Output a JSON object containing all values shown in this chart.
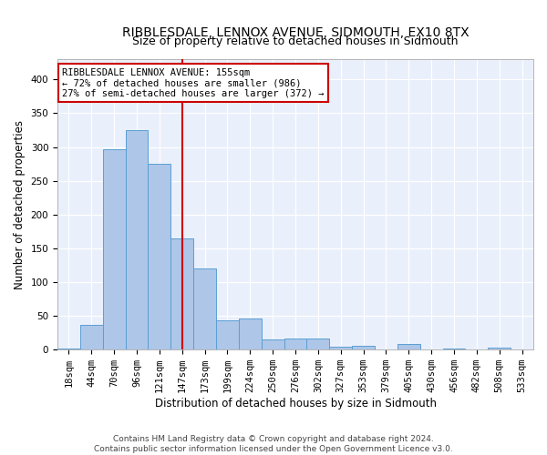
{
  "title": "RIBBLESDALE, LENNOX AVENUE, SIDMOUTH, EX10 8TX",
  "subtitle": "Size of property relative to detached houses in Sidmouth",
  "xlabel": "Distribution of detached houses by size in Sidmouth",
  "ylabel": "Number of detached properties",
  "footer_line1": "Contains HM Land Registry data © Crown copyright and database right 2024.",
  "footer_line2": "Contains public sector information licensed under the Open Government Licence v3.0.",
  "bin_labels": [
    "18sqm",
    "44sqm",
    "70sqm",
    "96sqm",
    "121sqm",
    "147sqm",
    "173sqm",
    "199sqm",
    "224sqm",
    "250sqm",
    "276sqm",
    "302sqm",
    "327sqm",
    "353sqm",
    "379sqm",
    "405sqm",
    "430sqm",
    "456sqm",
    "482sqm",
    "508sqm",
    "533sqm"
  ],
  "bar_values": [
    2,
    36,
    296,
    325,
    275,
    165,
    120,
    44,
    46,
    15,
    16,
    17,
    5,
    6,
    0,
    8,
    0,
    2,
    0,
    3,
    0
  ],
  "bar_color": "#aec6e8",
  "bar_edge_color": "#5a9fd4",
  "property_line_x": 5.0,
  "property_line_color": "#cc0000",
  "annotation_text": "RIBBLESDALE LENNOX AVENUE: 155sqm\n← 72% of detached houses are smaller (986)\n27% of semi-detached houses are larger (372) →",
  "annotation_box_color": "#ffffff",
  "annotation_box_edge_color": "#cc0000",
  "ylim": [
    0,
    430
  ],
  "yticks": [
    0,
    50,
    100,
    150,
    200,
    250,
    300,
    350,
    400
  ],
  "background_color": "#eaf0fb",
  "grid_color": "#ffffff",
  "title_fontsize": 10,
  "subtitle_fontsize": 9,
  "axis_label_fontsize": 8.5,
  "tick_fontsize": 7.5,
  "annotation_fontsize": 7.5,
  "footer_fontsize": 6.5
}
